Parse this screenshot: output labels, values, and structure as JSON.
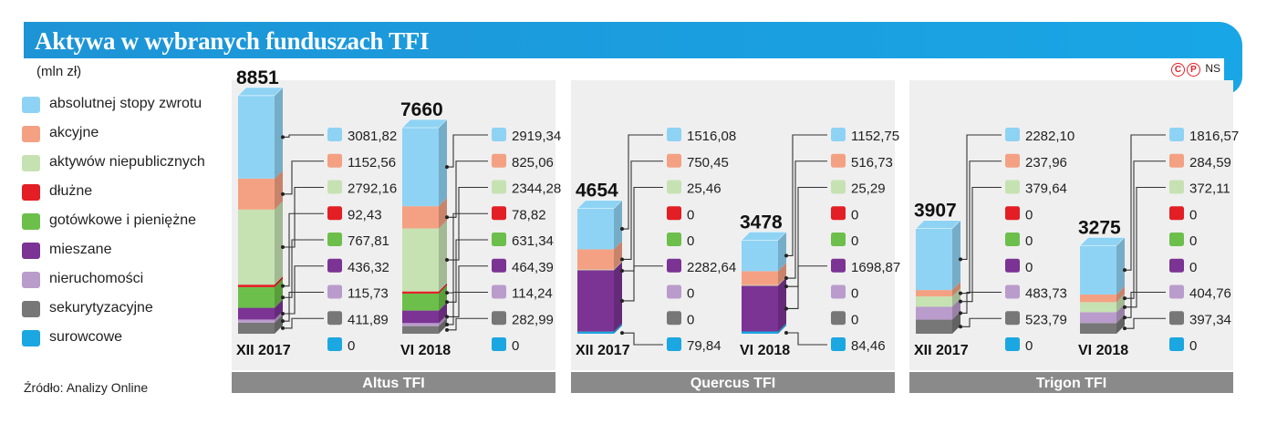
{
  "header": {
    "title": "Aktywa w wybranych funduszach TFI",
    "unit": "(mln zł)",
    "copyright_symbols": [
      "C",
      "P"
    ],
    "author": "NS"
  },
  "source": "Źródło: Analizy Online",
  "colors": {
    "banner": "#1a9ee0",
    "panel_header": "#8a8a8a",
    "panel_bg": "#efefef"
  },
  "legend": [
    {
      "label": "absolutnej stopy zwrotu",
      "color": "#8fd3f4"
    },
    {
      "label": "akcyjne",
      "color": "#f4a183"
    },
    {
      "label": "aktywów niepublicznych",
      "color": "#c6e2b3"
    },
    {
      "label": "dłużne",
      "color": "#e31e24"
    },
    {
      "label": "gotówkowe i pieniężne",
      "color": "#6cbf4b"
    },
    {
      "label": "mieszane",
      "color": "#7b3394"
    },
    {
      "label": "nieruchomości",
      "color": "#b99ccb"
    },
    {
      "label": "sekurytyzacyjne",
      "color": "#777777"
    },
    {
      "label": "surowcowe",
      "color": "#1ba7e1"
    }
  ],
  "chart_data": {
    "type": "bar",
    "stacked": true,
    "title": "Aktywa w wybranych funduszach TFI",
    "ylabel": "mln zł",
    "series_order_top_to_bottom": [
      "absolutnej stopy zwrotu",
      "akcyjne",
      "aktywów niepublicznych",
      "dłużne",
      "gotówkowe i pieniężne",
      "mieszane",
      "nieruchomości",
      "sekurytyzacyjne",
      "surowcowe"
    ],
    "groups": [
      {
        "name": "Altus TFI",
        "bars": [
          {
            "period": "XII 2017",
            "total": "8851",
            "values": [
              3081.82,
              1152.56,
              2792.16,
              92.43,
              767.81,
              436.32,
              115.73,
              411.89,
              0
            ],
            "labels": [
              "3081,82",
              "1152,56",
              "2792,16",
              "92,43",
              "767,81",
              "436,32",
              "115,73",
              "411,89",
              "0"
            ]
          },
          {
            "period": "VI 2018",
            "total": "7660",
            "values": [
              2919.34,
              825.06,
              2344.28,
              78.82,
              631.34,
              464.39,
              114.24,
              282.99,
              0
            ],
            "labels": [
              "2919,34",
              "825,06",
              "2344,28",
              "78,82",
              "631,34",
              "464,39",
              "114,24",
              "282,99",
              "0"
            ]
          }
        ]
      },
      {
        "name": "Quercus TFI",
        "bars": [
          {
            "period": "XII 2017",
            "total": "4654",
            "values": [
              1516.08,
              750.45,
              25.46,
              0,
              0,
              2282.64,
              0,
              0,
              79.84
            ],
            "labels": [
              "1516,08",
              "750,45",
              "25,46",
              "0",
              "0",
              "2282,64",
              "0",
              "0",
              "79,84"
            ]
          },
          {
            "period": "VI 2018",
            "total": "3478",
            "values": [
              1152.75,
              516.73,
              25.29,
              0,
              0,
              1698.87,
              0,
              0,
              84.46
            ],
            "labels": [
              "1152,75",
              "516,73",
              "25,29",
              "0",
              "0",
              "1698,87",
              "0",
              "0",
              "84,46"
            ]
          }
        ]
      },
      {
        "name": "Trigon TFI",
        "bars": [
          {
            "period": "XII 2017",
            "total": "3907",
            "values": [
              2282.1,
              237.96,
              379.64,
              0,
              0,
              0,
              483.73,
              523.79,
              0
            ],
            "labels": [
              "2282,10",
              "237,96",
              "379,64",
              "0",
              "0",
              "0",
              "483,73",
              "523,79",
              "0"
            ]
          },
          {
            "period": "VI 2018",
            "total": "3275",
            "values": [
              1816.57,
              284.59,
              372.11,
              0,
              0,
              0,
              404.76,
              397.34,
              0
            ],
            "labels": [
              "1816,57",
              "284,59",
              "372,11",
              "0",
              "0",
              "0",
              "404,76",
              "397,34",
              "0"
            ]
          }
        ]
      }
    ]
  }
}
